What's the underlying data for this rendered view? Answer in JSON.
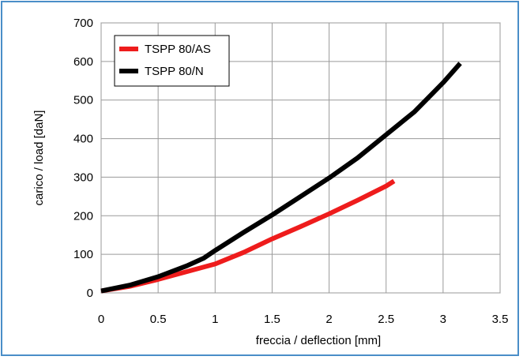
{
  "chart_data": {
    "type": "line",
    "title": "",
    "xlabel": "freccia / deflection [mm]",
    "ylabel": "carico / load [daN]",
    "xlim": [
      0,
      3.5
    ],
    "ylim": [
      0,
      700
    ],
    "xticks": [
      0,
      0.5,
      1,
      1.5,
      2,
      2.5,
      3,
      3.5
    ],
    "xtick_labels": [
      "0",
      "0.5",
      "1",
      "1.5",
      "2",
      "2.5",
      "3",
      "3.5"
    ],
    "yticks": [
      0,
      100,
      200,
      300,
      400,
      500,
      600,
      700
    ],
    "ytick_labels": [
      "0",
      "100",
      "200",
      "300",
      "400",
      "500",
      "600",
      "700"
    ],
    "grid": true,
    "legend_position": "top-left",
    "series": [
      {
        "name": "TSPP 80/AS",
        "color": "#ee1c1c",
        "x": [
          0,
          0.25,
          0.5,
          0.75,
          1,
          1.25,
          1.5,
          1.75,
          2,
          2.25,
          2.5,
          2.57
        ],
        "y": [
          5,
          17,
          35,
          55,
          75,
          105,
          140,
          172,
          205,
          240,
          277,
          290
        ]
      },
      {
        "name": "TSPP 80/N",
        "color": "#000000",
        "x": [
          0,
          0.25,
          0.5,
          0.75,
          0.9,
          1,
          1.25,
          1.5,
          1.75,
          2,
          2.25,
          2.5,
          2.75,
          3,
          3.15
        ],
        "y": [
          5,
          20,
          42,
          70,
          90,
          110,
          157,
          202,
          250,
          298,
          350,
          410,
          470,
          545,
          595
        ]
      }
    ]
  }
}
